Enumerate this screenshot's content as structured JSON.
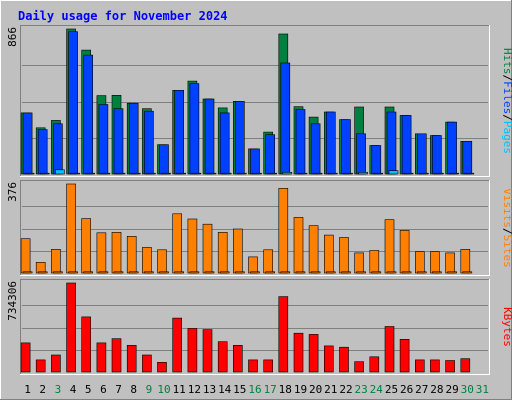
{
  "title": "Daily usage for November 2024",
  "colors": {
    "hits": "#008040",
    "files": "#0040ff",
    "pages": "#00c0ff",
    "visits": "#ff8000",
    "sites": "#ff8000",
    "kbytes": "#ff0000",
    "title": "#0000ff",
    "weekday": "#000000",
    "weekend": "#008040"
  },
  "side_labels": {
    "top": [
      "Pages",
      "Files",
      "Hits"
    ],
    "middle": [
      "Sites",
      "Visits"
    ],
    "bottom": "KBytes"
  },
  "side_label_colors": {
    "top": [
      "#00c0ff",
      "#0040ff",
      "#008040"
    ],
    "middle": [
      "#ff8000",
      "#ff8000"
    ],
    "bottom": "#ff0000"
  },
  "separators": "/",
  "chart_data": {
    "type": "bar",
    "x": [
      1,
      2,
      3,
      4,
      5,
      6,
      7,
      8,
      9,
      10,
      11,
      12,
      13,
      14,
      15,
      16,
      17,
      18,
      19,
      20,
      21,
      22,
      23,
      24,
      25,
      26,
      27,
      28,
      29,
      30,
      31
    ],
    "x_colors": [
      "black",
      "black",
      "green",
      "black",
      "black",
      "black",
      "black",
      "black",
      "green",
      "green",
      "black",
      "black",
      "black",
      "black",
      "black",
      "green",
      "green",
      "black",
      "black",
      "black",
      "black",
      "black",
      "green",
      "green",
      "black",
      "black",
      "black",
      "black",
      "black",
      "green",
      "green"
    ],
    "panels": [
      {
        "name": "hits-files-pages",
        "ymax_label": "866",
        "ymax": 866,
        "series": [
          {
            "name": "Hits",
            "values": [
              365,
              276,
              320,
              866,
              740,
              468,
              470,
              423,
              390,
              175,
              500,
              555,
              448,
              395,
              434,
              150,
              250,
              836,
              402,
              340,
              370,
              325,
              400,
              170,
              400,
              350,
              240,
              230,
              310,
              195,
              0
            ]
          },
          {
            "name": "Files",
            "values": [
              365,
              265,
              300,
              850,
              710,
              415,
              390,
              423,
              375,
              175,
              500,
              540,
              448,
              365,
              434,
              150,
              235,
              663,
              385,
              300,
              370,
              325,
              240,
              170,
              370,
              350,
              240,
              230,
              310,
              195,
              0
            ]
          },
          {
            "name": "Pages",
            "values": [
              5,
              5,
              25,
              5,
              5,
              5,
              5,
              5,
              5,
              5,
              5,
              5,
              5,
              5,
              5,
              5,
              5,
              10,
              5,
              5,
              5,
              5,
              10,
              5,
              20,
              5,
              5,
              5,
              5,
              5,
              0
            ]
          }
        ]
      },
      {
        "name": "visits-sites",
        "ymax_label": "376",
        "ymax": 376,
        "series": [
          {
            "name": "Visits",
            "values": [
              145,
              45,
              100,
              376,
              230,
              170,
              172,
              155,
              108,
              98,
              250,
              228,
              206,
              172,
              186,
              68,
              98,
              358,
              235,
              200,
              160,
              150,
              85,
              95,
              225,
              180,
              90,
              90,
              85,
              100,
              0
            ]
          },
          {
            "name": "Sites",
            "values": [
              5,
              5,
              5,
              5,
              5,
              5,
              5,
              5,
              5,
              5,
              5,
              5,
              5,
              5,
              5,
              5,
              5,
              5,
              5,
              5,
              5,
              5,
              5,
              5,
              5,
              5,
              5,
              5,
              5,
              5,
              0
            ]
          }
        ]
      },
      {
        "name": "kbytes",
        "ymax_label": "734306",
        "ymax": 734306,
        "series": [
          {
            "name": "KBytes",
            "values": [
              240000,
              100000,
              140000,
              734306,
              455000,
              240000,
              275000,
              220000,
              140000,
              80000,
              445000,
              360000,
              350000,
              250000,
              220000,
              100000,
              100000,
              622000,
              320000,
              310000,
              215000,
              205000,
              85000,
              125000,
              375000,
              270000,
              100000,
              100000,
              95000,
              110000,
              0
            ]
          }
        ]
      }
    ]
  }
}
